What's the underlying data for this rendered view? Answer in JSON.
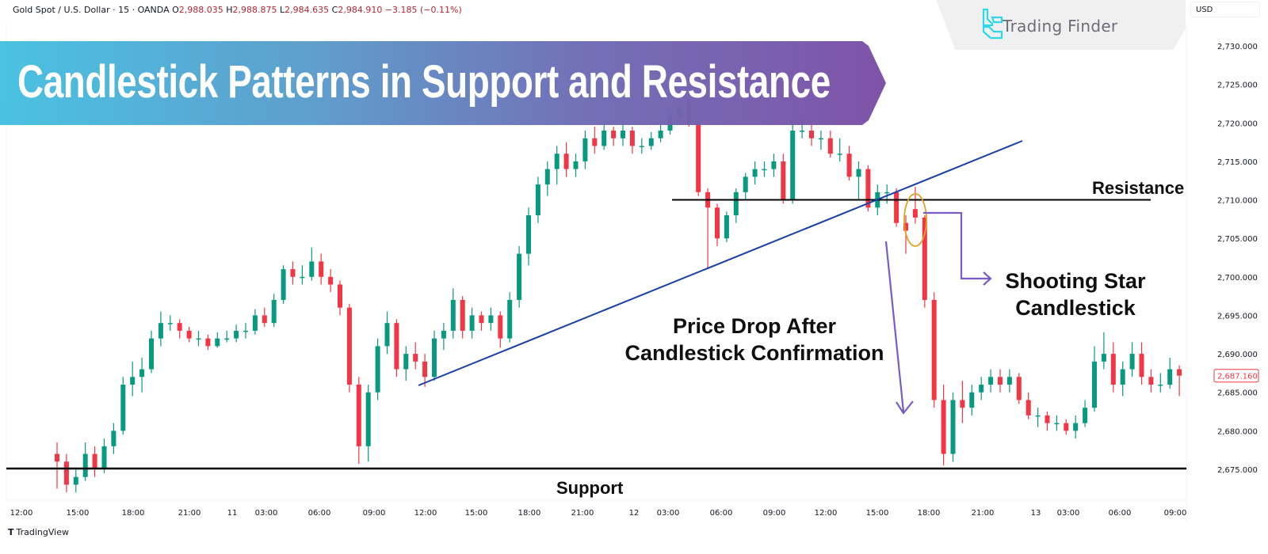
{
  "legend": {
    "symbol": "Gold Spot / U.S. Dollar · 15 · OANDA",
    "open_label": "O",
    "open": "2,988.035",
    "high_label": "H",
    "high": "2,988.875",
    "low_label": "L",
    "low": "2,984.635",
    "close_label": "C",
    "close": "2,984.910",
    "change": "−3.185 (−0.11%)"
  },
  "banner": {
    "title": "Candlestick Patterns in Support and Resistance"
  },
  "logo": {
    "text": "Trading Finder",
    "icon": "trading-finder-logo-icon"
  },
  "currency": "USD",
  "footer": {
    "brand": "TradingView",
    "icon": "tradingview-logo-icon"
  },
  "annotations": {
    "resistance": "Resistance",
    "support": "Support",
    "shooting_star": [
      "Shooting Star",
      "Candlestick"
    ],
    "price_drop": [
      "Price Drop After",
      "Candlestick Confirmation"
    ]
  },
  "colors": {
    "up": "#089981",
    "down": "#f23645",
    "trendline": "#1a3fa8",
    "annotation_arrow": "#7a5cc4",
    "highlight": "#e0a020"
  },
  "chart_data": {
    "type": "candlestick",
    "title": "",
    "ylim": [
      2670.5,
      2733
    ],
    "yticks": [
      2730,
      2725,
      2720,
      2715,
      2710,
      2705,
      2700,
      2695,
      2690,
      2685,
      2680,
      2675
    ],
    "ytick_labels": [
      "2,730.000",
      "2,725.000",
      "2,720.000",
      "2,715.000",
      "2,710.000",
      "2,705.000",
      "2,700.000",
      "2,695.000",
      "2,690.000",
      "2,685.000",
      "2,680.000",
      "2,675.000"
    ],
    "xtick_labels": [
      "12:00",
      "15:00",
      "18:00",
      "21:00",
      "11",
      "03:00",
      "06:00",
      "09:00",
      "12:00",
      "15:00",
      "18:00",
      "21:00",
      "12",
      "03:00",
      "06:00",
      "09:00",
      "12:00",
      "15:00",
      "18:00",
      "21:00",
      "13",
      "03:00",
      "06:00",
      "09:00"
    ],
    "last_price": 2687.16,
    "last_price_label": "2,687.160",
    "resistance_level": 2710,
    "support_level": 2675.1,
    "grid": false,
    "candles_ohlc": [
      [
        2677,
        2678.5,
        2672.5,
        2676
      ],
      [
        2676,
        2677,
        2672,
        2673
      ],
      [
        2673,
        2675,
        2672,
        2674
      ],
      [
        2674,
        2678.5,
        2673.5,
        2677
      ],
      [
        2677,
        2678,
        2674,
        2675
      ],
      [
        2675,
        2679,
        2674.5,
        2678
      ],
      [
        2678,
        2681,
        2677,
        2680
      ],
      [
        2680,
        2687,
        2679.5,
        2686
      ],
      [
        2686,
        2689,
        2684.5,
        2687
      ],
      [
        2687,
        2689.5,
        2685,
        2688
      ],
      [
        2688,
        2693,
        2687.5,
        2692
      ],
      [
        2692,
        2695.5,
        2691,
        2694
      ],
      [
        2694,
        2695,
        2693,
        2694
      ],
      [
        2694,
        2694.5,
        2692,
        2693
      ],
      [
        2693,
        2693.5,
        2691.5,
        2692
      ],
      [
        2692,
        2693,
        2691,
        2692
      ],
      [
        2692,
        2692.5,
        2690.5,
        2691
      ],
      [
        2691,
        2692.8,
        2690.8,
        2692
      ],
      [
        2692,
        2693,
        2691.5,
        2692
      ],
      [
        2692,
        2693.8,
        2691.5,
        2693
      ],
      [
        2693,
        2694,
        2692,
        2693
      ],
      [
        2693,
        2695.8,
        2692.5,
        2695
      ],
      [
        2695,
        2696,
        2693.5,
        2694
      ],
      [
        2694,
        2697.8,
        2693.5,
        2697
      ],
      [
        2697,
        2701.5,
        2696.5,
        2701
      ],
      [
        2701,
        2702,
        2699,
        2700
      ],
      [
        2700,
        2701.5,
        2699,
        2700
      ],
      [
        2700,
        2703.8,
        2699.5,
        2702
      ],
      [
        2702,
        2703,
        2699,
        2700
      ],
      [
        2700,
        2701,
        2698,
        2699
      ],
      [
        2699,
        2699.5,
        2695,
        2696
      ],
      [
        2696,
        2696.5,
        2685,
        2686
      ],
      [
        2686,
        2687,
        2675.7,
        2678
      ],
      [
        2678,
        2686,
        2676,
        2685
      ],
      [
        2685,
        2692,
        2684,
        2691
      ],
      [
        2691,
        2695.5,
        2690,
        2694
      ],
      [
        2694,
        2694.5,
        2687,
        2688
      ],
      [
        2688,
        2691,
        2686.5,
        2690
      ],
      [
        2690,
        2691.5,
        2688,
        2689
      ],
      [
        2689,
        2690,
        2685.7,
        2687
      ],
      [
        2687,
        2693,
        2686.5,
        2692
      ],
      [
        2692,
        2694,
        2690.5,
        2693
      ],
      [
        2693,
        2698.5,
        2692,
        2697
      ],
      [
        2697,
        2697.5,
        2692,
        2693
      ],
      [
        2693,
        2696,
        2692,
        2695
      ],
      [
        2695,
        2695.5,
        2693,
        2694
      ],
      [
        2694,
        2696,
        2693,
        2695
      ],
      [
        2695,
        2695.5,
        2690.8,
        2692
      ],
      [
        2692,
        2698,
        2691.5,
        2697
      ],
      [
        2697,
        2704,
        2696,
        2703
      ],
      [
        2703,
        2709,
        2701.5,
        2708
      ],
      [
        2708,
        2713,
        2707,
        2712
      ],
      [
        2712,
        2715,
        2710.5,
        2714
      ],
      [
        2714,
        2717,
        2712,
        2716
      ],
      [
        2716,
        2717.5,
        2713,
        2714
      ],
      [
        2714,
        2716,
        2713,
        2715
      ],
      [
        2715,
        2719,
        2714,
        2718
      ],
      [
        2718,
        2719.5,
        2716,
        2717
      ],
      [
        2717,
        2720.5,
        2716.5,
        2719
      ],
      [
        2719,
        2719.5,
        2717,
        2718
      ],
      [
        2718,
        2720,
        2717,
        2719
      ],
      [
        2719,
        2719.5,
        2716,
        2717
      ],
      [
        2717,
        2718,
        2716,
        2717
      ],
      [
        2717,
        2718.8,
        2716.5,
        2718
      ],
      [
        2718,
        2719.8,
        2717.5,
        2719
      ],
      [
        2719,
        2721.8,
        2718.5,
        2721
      ],
      [
        2721,
        2722.8,
        2720.5,
        2722
      ],
      [
        2723,
        2724.5,
        2719.5,
        2720
      ],
      [
        2720,
        2720.5,
        2710.5,
        2711
      ],
      [
        2711,
        2711.5,
        2701,
        2709
      ],
      [
        2709,
        2709.5,
        2704,
        2705
      ],
      [
        2705,
        2708.5,
        2704.5,
        2708
      ],
      [
        2708,
        2711.5,
        2707,
        2711
      ],
      [
        2711,
        2713.5,
        2710,
        2713
      ],
      [
        2713,
        2715,
        2712,
        2714
      ],
      [
        2714,
        2715,
        2713,
        2714
      ],
      [
        2714,
        2716,
        2713,
        2715
      ],
      [
        2715,
        2716,
        2709.5,
        2710
      ],
      [
        2710,
        2720,
        2709.5,
        2719
      ],
      [
        2719,
        2721,
        2718,
        2719
      ],
      [
        2719,
        2720,
        2717,
        2718
      ],
      [
        2718,
        2719,
        2716.5,
        2718
      ],
      [
        2718,
        2719,
        2715.5,
        2716
      ],
      [
        2716,
        2718,
        2715,
        2716
      ],
      [
        2716,
        2717,
        2712.5,
        2713
      ],
      [
        2713,
        2715,
        2710,
        2714
      ],
      [
        2714,
        2714.5,
        2708.5,
        2709
      ],
      [
        2709,
        2712,
        2708,
        2711
      ],
      [
        2711,
        2712,
        2709.5,
        2711
      ],
      [
        2711,
        2711.5,
        2706.5,
        2707
      ],
      [
        2707,
        2708,
        2703,
        2706
      ],
      [
        2708.8,
        2711.7,
        2706.9,
        2707.7
      ],
      [
        2707.7,
        2708,
        2696,
        2697
      ],
      [
        2697,
        2698,
        2683,
        2684
      ],
      [
        2684,
        2686,
        2675.5,
        2677
      ],
      [
        2677,
        2685,
        2676,
        2684
      ],
      [
        2684,
        2686.5,
        2681,
        2683
      ],
      [
        2683,
        2686,
        2682,
        2685
      ],
      [
        2685,
        2687,
        2684,
        2686
      ],
      [
        2686,
        2688,
        2685,
        2687
      ],
      [
        2687,
        2688,
        2685,
        2686
      ],
      [
        2686,
        2688,
        2685,
        2687
      ],
      [
        2687,
        2687.5,
        2683.5,
        2684
      ],
      [
        2684,
        2685,
        2681.5,
        2682
      ],
      [
        2682,
        2683,
        2680.5,
        2682
      ],
      [
        2682,
        2682.5,
        2680,
        2681
      ],
      [
        2681,
        2682,
        2680,
        2681
      ],
      [
        2681,
        2681.5,
        2679.5,
        2680
      ],
      [
        2680,
        2682,
        2679,
        2681
      ],
      [
        2681,
        2684,
        2680.5,
        2683
      ],
      [
        2683,
        2691,
        2682.5,
        2689
      ],
      [
        2689,
        2692.8,
        2688,
        2690
      ],
      [
        2690,
        2691.5,
        2685,
        2686
      ],
      [
        2686,
        2689,
        2684.5,
        2688
      ],
      [
        2688,
        2691.5,
        2687,
        2690
      ],
      [
        2690,
        2691.5,
        2686,
        2687
      ],
      [
        2687,
        2688,
        2685,
        2686
      ],
      [
        2686,
        2687.5,
        2685,
        2686
      ],
      [
        2686,
        2689.5,
        2685.5,
        2688
      ],
      [
        2688,
        2688.5,
        2684.5,
        2687.16
      ]
    ]
  }
}
